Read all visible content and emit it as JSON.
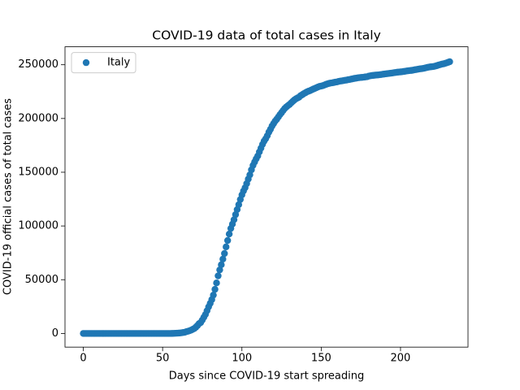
{
  "chart_data": {
    "type": "scatter",
    "title": "COVID-19 data of total cases in Italy",
    "x_label": "Days since COVID-19 start spreading",
    "y_label": "COVID-19 official cases of total cases",
    "legend": "upper left",
    "x": [
      0,
      1,
      2,
      3,
      4,
      5,
      6,
      7,
      8,
      9,
      10,
      11,
      12,
      13,
      14,
      15,
      16,
      17,
      18,
      19,
      20,
      21,
      22,
      23,
      24,
      25,
      26,
      27,
      28,
      29,
      30,
      31,
      32,
      33,
      34,
      35,
      36,
      37,
      38,
      39,
      40,
      41,
      42,
      43,
      44,
      45,
      46,
      47,
      48,
      49,
      50,
      51,
      52,
      53,
      54,
      55,
      56,
      57,
      58,
      59,
      60,
      61,
      62,
      63,
      64,
      65,
      66,
      67,
      68,
      69,
      70,
      71,
      72,
      73,
      74,
      75,
      76,
      77,
      78,
      79,
      80,
      81,
      82,
      83,
      84,
      85,
      86,
      87,
      88,
      89,
      90,
      91,
      92,
      93,
      94,
      95,
      96,
      97,
      98,
      99,
      100,
      101,
      102,
      103,
      104,
      105,
      106,
      107,
      108,
      109,
      110,
      111,
      112,
      113,
      114,
      115,
      116,
      117,
      118,
      119,
      120,
      121,
      122,
      123,
      124,
      125,
      126,
      127,
      128,
      129,
      130,
      131,
      132,
      133,
      134,
      135,
      136,
      137,
      138,
      139,
      140,
      141,
      142,
      143,
      144,
      145,
      146,
      147,
      148,
      149,
      150,
      151,
      152,
      153,
      154,
      155,
      156,
      157,
      158,
      159,
      160,
      161,
      162,
      163,
      164,
      165,
      166,
      167,
      168,
      169,
      170,
      171,
      172,
      173,
      174,
      175,
      176,
      177,
      178,
      179,
      180,
      181,
      182,
      183,
      184,
      185,
      186,
      187,
      188,
      189,
      190,
      191,
      192,
      193,
      194,
      195,
      196,
      197,
      198,
      199,
      200,
      201,
      202,
      203,
      204,
      205,
      206,
      207,
      208,
      209,
      210,
      211,
      212,
      213,
      214,
      215,
      216,
      217,
      218,
      219,
      220,
      221,
      222,
      223,
      224,
      225,
      226,
      227,
      228,
      229,
      230,
      231
    ],
    "series": [
      {
        "name": "Italy",
        "color": "#1f77b4",
        "values": [
          0,
          0,
          0,
          0,
          0,
          0,
          0,
          0,
          0,
          0,
          0,
          0,
          0,
          0,
          0,
          0,
          0,
          0,
          0,
          0,
          0,
          0,
          0,
          0,
          0,
          0,
          0,
          0,
          0,
          0,
          0,
          0,
          0,
          0,
          0,
          2,
          2,
          2,
          2,
          2,
          2,
          3,
          3,
          3,
          3,
          3,
          3,
          3,
          3,
          3,
          3,
          3,
          3,
          3,
          3,
          3,
          20,
          62,
          155,
          229,
          322,
          453,
          655,
          888,
          1128,
          1694,
          2036,
          2502,
          3089,
          3858,
          4636,
          5883,
          7375,
          9172,
          10149,
          12462,
          15113,
          17660,
          21157,
          24747,
          27980,
          31506,
          35713,
          41035,
          47021,
          53578,
          59138,
          63927,
          69176,
          74386,
          80539,
          86498,
          92472,
          97689,
          101739,
          105792,
          110574,
          115242,
          119827,
          124632,
          128948,
          132547,
          135586,
          139422,
          143626,
          147577,
          152271,
          156363,
          159516,
          162488,
          165155,
          168941,
          172434,
          175925,
          178972,
          181228,
          183957,
          187327,
          189973,
          192994,
          195351,
          197675,
          199414,
          201505,
          203591,
          205463,
          207428,
          209328,
          210717,
          211938,
          213013,
          214457,
          215858,
          217185,
          218268,
          219070,
          219814,
          221216,
          222104,
          223096,
          223885,
          224760,
          225435,
          225886,
          226699,
          227364,
          228006,
          228658,
          229327,
          229858,
          230158,
          230555,
          231139,
          231732,
          232248,
          232664,
          232997,
          233197,
          233515,
          233836,
          234013,
          234531,
          234801,
          234998,
          235278,
          235561,
          235763,
          236142,
          236305,
          236651,
          236989,
          237290,
          237500,
          237828,
          238011,
          238159,
          238275,
          238499,
          238720,
          238833,
          239410,
          239706,
          239961,
          240136,
          240310,
          240436,
          240578,
          240760,
          240961,
          241184,
          241419,
          241611,
          241819,
          241956,
          242149,
          242363,
          242639,
          242827,
          243061,
          243230,
          243344,
          243506,
          243736,
          243967,
          244216,
          244434,
          244624,
          244752,
          245032,
          245338,
          245590,
          245864,
          246118,
          246286,
          246488,
          246776,
          247158,
          247537,
          247832,
          248070,
          248229,
          248419,
          248803,
          249204,
          249756,
          250103,
          250566,
          250825,
          251237,
          251713,
          252235,
          252809
        ]
      }
    ],
    "xlim": [
      -11.55,
      242.55
    ],
    "xticks": [
      0,
      50,
      100,
      150,
      200
    ],
    "ylim": [
      -12700,
      266700
    ],
    "yticks": [
      0,
      50000,
      100000,
      150000,
      200000,
      250000
    ]
  }
}
